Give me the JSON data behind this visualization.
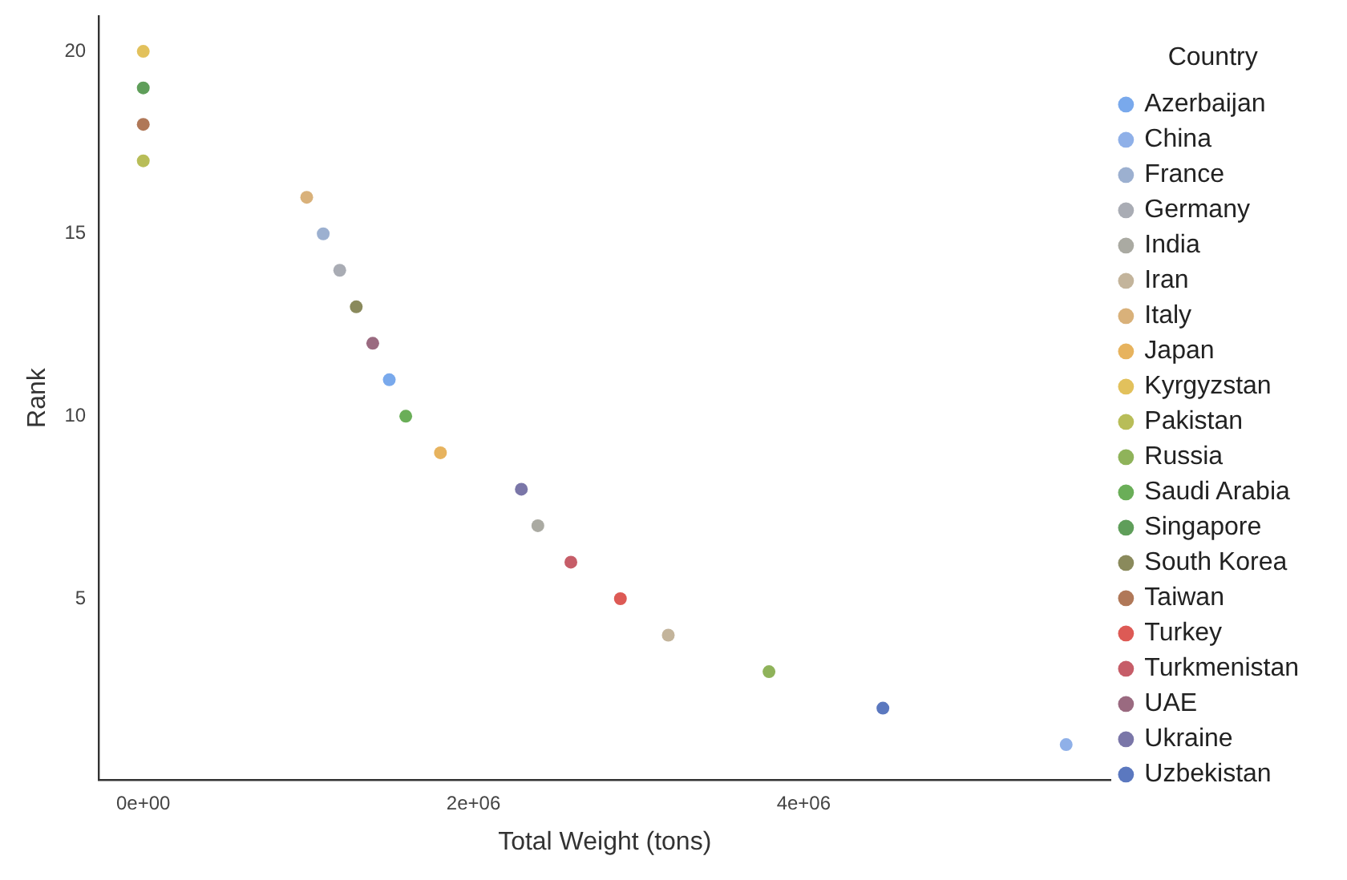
{
  "chart_data": {
    "type": "scatter",
    "xlabel": "Total Weight (tons)",
    "ylabel": "Rank",
    "legend_title": "Country",
    "legend": "right",
    "grid": false,
    "marker": "circle",
    "xlim": [
      -270000,
      5860000
    ],
    "xticks": [
      {
        "value": 0,
        "label": "0e+00"
      },
      {
        "value": 2000000,
        "label": "2e+06"
      },
      {
        "value": 4000000,
        "label": "4e+06"
      }
    ],
    "ylim": [
      0.04,
      20.96
    ],
    "yticks": [
      5,
      10,
      15,
      20
    ],
    "series": [
      {
        "name": "Azerbaijan",
        "color": "#79a9ec",
        "x": [
          1490000
        ],
        "values": [
          11
        ]
      },
      {
        "name": "China",
        "color": "#8fb0e8",
        "x": [
          5590000
        ],
        "values": [
          1
        ]
      },
      {
        "name": "France",
        "color": "#9cb0d0",
        "x": [
          1090000
        ],
        "values": [
          15
        ]
      },
      {
        "name": "Germany",
        "color": "#a9acb4",
        "x": [
          1190000
        ],
        "values": [
          14
        ]
      },
      {
        "name": "India",
        "color": "#aaaaa2",
        "x": [
          2390000
        ],
        "values": [
          7
        ]
      },
      {
        "name": "Iran",
        "color": "#c3b49b",
        "x": [
          3180000
        ],
        "values": [
          4
        ]
      },
      {
        "name": "Italy",
        "color": "#d9b17a",
        "x": [
          990000
        ],
        "values": [
          16
        ]
      },
      {
        "name": "Japan",
        "color": "#e7b35e",
        "x": [
          1800000
        ],
        "values": [
          9
        ]
      },
      {
        "name": "Kyrgyzstan",
        "color": "#e2c15c",
        "x": [
          0
        ],
        "values": [
          20
        ]
      },
      {
        "name": "Pakistan",
        "color": "#b8bd58",
        "x": [
          0
        ],
        "values": [
          17
        ]
      },
      {
        "name": "Russia",
        "color": "#8fb35a",
        "x": [
          3790000
        ],
        "values": [
          3
        ]
      },
      {
        "name": "Saudi Arabia",
        "color": "#6aae58",
        "x": [
          1590000
        ],
        "values": [
          10
        ]
      },
      {
        "name": "Singapore",
        "color": "#5f9e5a",
        "x": [
          0
        ],
        "values": [
          19
        ]
      },
      {
        "name": "South Korea",
        "color": "#8a8a5c",
        "x": [
          1290000
        ],
        "values": [
          13
        ]
      },
      {
        "name": "Taiwan",
        "color": "#b07858",
        "x": [
          0
        ],
        "values": [
          18
        ]
      },
      {
        "name": "Turkey",
        "color": "#dd5a55",
        "x": [
          2890000
        ],
        "values": [
          5
        ]
      },
      {
        "name": "Turkmenistan",
        "color": "#c65d68",
        "x": [
          2590000
        ],
        "values": [
          6
        ]
      },
      {
        "name": "UAE",
        "color": "#9a6a80",
        "x": [
          1390000
        ],
        "values": [
          12
        ]
      },
      {
        "name": "Ukraine",
        "color": "#7a76a8",
        "x": [
          2290000
        ],
        "values": [
          8
        ]
      },
      {
        "name": "Uzbekistan",
        "color": "#5b78bf",
        "x": [
          4480000
        ],
        "values": [
          2
        ]
      }
    ]
  }
}
